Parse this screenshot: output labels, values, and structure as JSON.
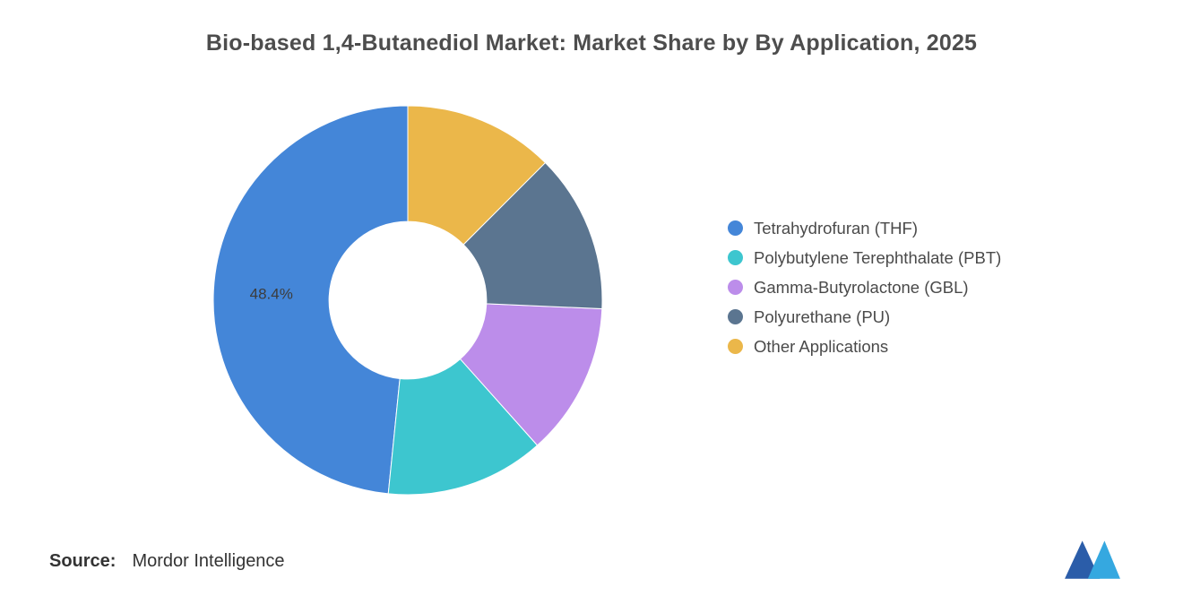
{
  "title": "Bio-based 1,4-Butanediol Market: Market Share by By Application, 2025",
  "source": {
    "label": "Source:",
    "value": "Mordor Intelligence"
  },
  "logo": {
    "name": "mordor-intelligence-logo",
    "dark_color": "#2B5DA9",
    "light_color": "#35A8E0"
  },
  "chart_data": {
    "type": "pie",
    "subtype": "donut",
    "title": "Bio-based 1,4-Butanediol Market: Market Share by By Application, 2025",
    "labels": [
      "Tetrahydrofuran (THF)",
      "Polybutylene Terephthalate (PBT)",
      "Gamma-Butyrolactone (GBL)",
      "Polyurethane (PU)",
      "Other Applications"
    ],
    "values": [
      48.4,
      13.2,
      12.7,
      13.2,
      12.5
    ],
    "colors": [
      "#4486D8",
      "#3DC6CF",
      "#BC8DEA",
      "#5B7590",
      "#EBB74A"
    ],
    "data_labels": [
      "48.4%",
      "",
      "",
      "",
      ""
    ],
    "legend_position": "right",
    "start_angle_deg": 0,
    "direction": "counterclockwise",
    "inner_radius_ratio": 0.405
  }
}
